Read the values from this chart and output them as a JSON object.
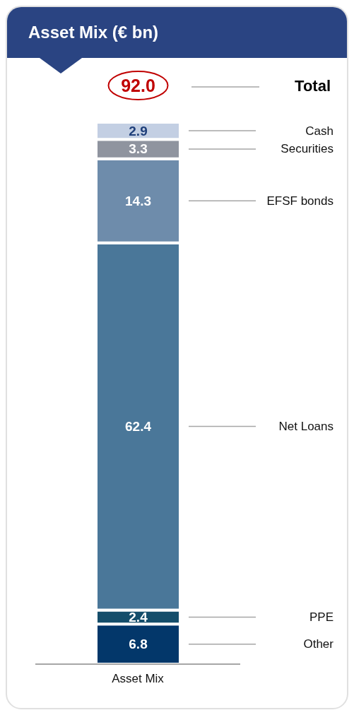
{
  "chart_data": {
    "type": "bar",
    "title": "Asset Mix (€ bn)",
    "stacked": true,
    "categories": [
      "Asset Mix"
    ],
    "series": [
      {
        "name": "Other",
        "color": "#03376a",
        "values": [
          6.8
        ]
      },
      {
        "name": "PPE",
        "color": "#154e6b",
        "values": [
          2.4
        ]
      },
      {
        "name": "Net Loans",
        "color": "#4a7799",
        "values": [
          62.4
        ]
      },
      {
        "name": "EFSF bonds",
        "color": "#6e8cab",
        "values": [
          14.3
        ]
      },
      {
        "name": "Securities",
        "color": "#8f949f",
        "values": [
          3.3
        ]
      },
      {
        "name": "Cash",
        "color": "#c3cfe3",
        "values": [
          2.9
        ]
      }
    ],
    "data_labels": true,
    "totals": [
      "92.0"
    ],
    "annotations": [
      "Total"
    ],
    "tick_labels": "x"
  }
}
